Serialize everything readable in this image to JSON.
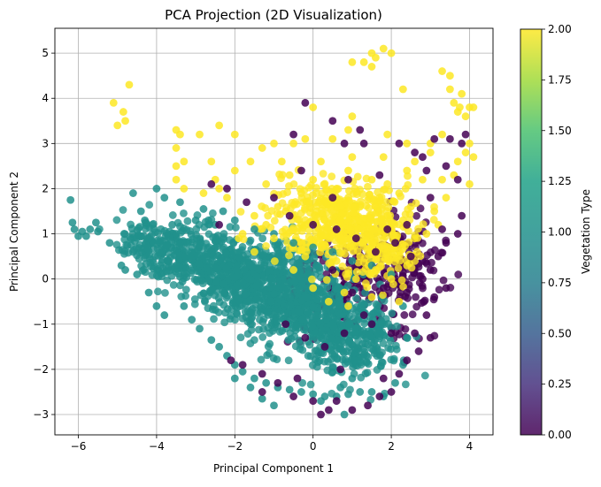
{
  "chart_data": {
    "type": "scatter",
    "title": "PCA Projection (2D Visualization)",
    "xlabel": "Principal Component 1",
    "ylabel": "Principal Component 2",
    "xlim": [
      -6.6,
      4.6
    ],
    "ylim": [
      -3.45,
      5.55
    ],
    "xticks": [
      -6,
      -4,
      -2,
      0,
      2,
      4
    ],
    "yticks": [
      -3,
      -2,
      -1,
      0,
      1,
      2,
      3,
      4,
      5
    ],
    "grid": true,
    "colormap": "viridis",
    "marker_alpha": 0.8,
    "colorbar": {
      "label": "Vegetation Type",
      "range": [
        0.0,
        2.0
      ],
      "ticks": [
        "0.00",
        "0.25",
        "0.50",
        "0.75",
        "1.00",
        "1.25",
        "1.50",
        "1.75",
        "2.00"
      ]
    },
    "series": [
      {
        "value": 1,
        "color": "#21918c",
        "points": [
          [
            -6.2,
            1.75
          ],
          [
            -6.15,
            1.25
          ],
          [
            -6.1,
            1.1
          ],
          [
            -6.0,
            0.95
          ],
          [
            -5.9,
            1.05
          ],
          [
            -5.8,
            0.95
          ],
          [
            -5.7,
            1.1
          ],
          [
            -5.55,
            1.25
          ],
          [
            -5.5,
            1.05
          ],
          [
            -5.2,
            0.8
          ],
          [
            -4.9,
            0.3
          ],
          [
            -4.8,
            0.2
          ],
          [
            -4.6,
            1.9
          ],
          [
            -4.6,
            0.6
          ],
          [
            -4.4,
            1.5
          ],
          [
            -4.3,
            1.3
          ],
          [
            -4.2,
            0.9
          ],
          [
            -4.0,
            2.0
          ],
          [
            -3.8,
            1.8
          ],
          [
            -3.6,
            1.2
          ],
          [
            -3.5,
            0.3
          ],
          [
            -3.3,
            -0.6
          ],
          [
            -3.1,
            -0.9
          ],
          [
            -2.9,
            -1.1
          ],
          [
            -2.6,
            -1.35
          ],
          [
            -2.4,
            -1.5
          ],
          [
            -2.2,
            -1.7
          ],
          [
            -2.0,
            -1.9
          ],
          [
            -1.8,
            -2.05
          ],
          [
            -1.5,
            -2.2
          ],
          [
            -1.2,
            -2.3
          ],
          [
            -0.9,
            -2.4
          ],
          [
            -0.6,
            -2.45
          ],
          [
            -0.3,
            -2.5
          ],
          [
            0.0,
            -2.55
          ],
          [
            0.3,
            -2.6
          ],
          [
            0.6,
            -2.6
          ],
          [
            0.9,
            -2.55
          ],
          [
            1.2,
            -2.5
          ],
          [
            1.5,
            -2.5
          ],
          [
            1.8,
            -2.6
          ],
          [
            2.1,
            -2.3
          ],
          [
            2.3,
            -1.9
          ],
          [
            2.4,
            -1.3
          ],
          [
            2.3,
            -0.6
          ],
          [
            -1.0,
            -2.8
          ],
          [
            -1.3,
            -2.65
          ],
          [
            0.2,
            -2.7
          ],
          [
            -2.5,
            1.2
          ],
          [
            -2.0,
            1.3
          ],
          [
            -1.5,
            1.1
          ],
          [
            -1.0,
            1.0
          ],
          [
            -0.5,
            0.8
          ],
          [
            0.0,
            0.7
          ],
          [
            0.5,
            0.6
          ],
          [
            1.0,
            0.4
          ],
          [
            1.5,
            0.3
          ],
          [
            2.0,
            0.1
          ],
          [
            -3.0,
            1.3
          ],
          [
            -3.5,
            1.0
          ],
          [
            -4.5,
            0.1
          ],
          [
            -4.2,
            -0.3
          ],
          [
            -4.0,
            -0.6
          ],
          [
            -3.8,
            -0.8
          ],
          [
            -3.4,
            1.7
          ],
          [
            -2.8,
            1.55
          ],
          [
            -2.3,
            1.5
          ],
          [
            -1.6,
            -2.4
          ],
          [
            -2.0,
            -2.2
          ],
          [
            0.7,
            -2.4
          ],
          [
            1.0,
            -2.2
          ],
          [
            0.8,
            -3.0
          ]
        ]
      },
      {
        "value": 2,
        "color": "#fde725",
        "points": [
          [
            -5.1,
            3.9
          ],
          [
            -5.0,
            3.4
          ],
          [
            -4.85,
            3.7
          ],
          [
            -4.8,
            3.5
          ],
          [
            -4.7,
            4.3
          ],
          [
            -3.5,
            3.3
          ],
          [
            -3.4,
            3.2
          ],
          [
            -3.5,
            2.9
          ],
          [
            -3.3,
            2.6
          ],
          [
            -3.5,
            2.5
          ],
          [
            -3.5,
            2.2
          ],
          [
            -3.3,
            2.0
          ],
          [
            -2.9,
            3.2
          ],
          [
            -2.4,
            3.4
          ],
          [
            -2.0,
            3.2
          ],
          [
            -1.3,
            2.9
          ],
          [
            -1.0,
            3.0
          ],
          [
            -0.5,
            3.0
          ],
          [
            -0.2,
            3.1
          ],
          [
            0.0,
            3.8
          ],
          [
            0.5,
            3.1
          ],
          [
            0.9,
            3.3
          ],
          [
            1.0,
            3.6
          ],
          [
            1.0,
            4.8
          ],
          [
            1.3,
            4.8
          ],
          [
            1.5,
            4.7
          ],
          [
            1.5,
            5.0
          ],
          [
            1.6,
            4.9
          ],
          [
            1.8,
            5.1
          ],
          [
            2.0,
            5.0
          ],
          [
            1.9,
            3.2
          ],
          [
            2.4,
            3.0
          ],
          [
            2.3,
            4.2
          ],
          [
            3.0,
            3.0
          ],
          [
            3.3,
            3.2
          ],
          [
            3.3,
            4.6
          ],
          [
            3.5,
            4.2
          ],
          [
            3.5,
            4.5
          ],
          [
            3.6,
            3.9
          ],
          [
            3.7,
            3.7
          ],
          [
            3.75,
            3.8
          ],
          [
            3.8,
            4.1
          ],
          [
            3.9,
            3.6
          ],
          [
            3.9,
            2.8
          ],
          [
            4.0,
            2.1
          ],
          [
            4.0,
            3.8
          ],
          [
            4.1,
            3.8
          ],
          [
            4.1,
            2.7
          ],
          [
            4.0,
            3.0
          ],
          [
            3.7,
            2.6
          ],
          [
            3.6,
            2.3
          ],
          [
            3.4,
            1.8
          ],
          [
            3.3,
            2.2
          ],
          [
            3.0,
            2.8
          ],
          [
            3.1,
            1.5
          ],
          [
            2.8,
            2.2
          ],
          [
            2.6,
            2.6
          ],
          [
            2.4,
            2.4
          ],
          [
            2.2,
            1.9
          ],
          [
            1.9,
            2.1
          ],
          [
            1.7,
            1.8
          ],
          [
            1.5,
            2.2
          ],
          [
            1.2,
            1.6
          ],
          [
            0.9,
            2.4
          ],
          [
            0.6,
            2.0
          ],
          [
            0.3,
            1.7
          ],
          [
            0.0,
            2.2
          ],
          [
            -0.3,
            1.9
          ],
          [
            -0.6,
            2.3
          ],
          [
            -0.9,
            1.6
          ],
          [
            -1.2,
            2.1
          ],
          [
            -1.5,
            1.4
          ],
          [
            -1.8,
            1.0
          ],
          [
            -2.0,
            2.4
          ],
          [
            -2.2,
            1.8
          ],
          [
            -2.5,
            2.2
          ],
          [
            -2.6,
            2.6
          ],
          [
            -1.6,
            2.6
          ],
          [
            -0.8,
            2.6
          ],
          [
            0.2,
            2.6
          ],
          [
            1.0,
            2.7
          ],
          [
            1.8,
            2.7
          ],
          [
            -1.9,
            0.9
          ],
          [
            -1.5,
            0.6
          ],
          [
            -1.0,
            0.9
          ],
          [
            -0.5,
            0.2
          ],
          [
            0.0,
            -0.2
          ],
          [
            0.4,
            -0.5
          ],
          [
            0.8,
            -0.3
          ],
          [
            1.2,
            0.5
          ],
          [
            1.6,
            0.2
          ],
          [
            2.0,
            0.0
          ],
          [
            2.2,
            -0.5
          ],
          [
            2.4,
            0.3
          ],
          [
            2.6,
            0.9
          ],
          [
            2.9,
            1.0
          ],
          [
            -0.3,
            1.2
          ],
          [
            0.2,
            1.0
          ],
          [
            0.7,
            1.3
          ],
          [
            1.4,
            1.2
          ],
          [
            1.9,
            1.4
          ],
          [
            2.3,
            1.3
          ],
          [
            -1.2,
            1.2
          ],
          [
            -0.7,
            1.5
          ],
          [
            0.1,
            1.5
          ],
          [
            0.9,
            1.8
          ],
          [
            1.6,
            1.6
          ],
          [
            2.5,
            1.6
          ],
          [
            3.2,
            1.2
          ],
          [
            -2.4,
            2.0
          ],
          [
            -2.8,
            1.9
          ],
          [
            0.6,
            0.4
          ],
          [
            1.1,
            0.0
          ],
          [
            1.5,
            -0.4
          ],
          [
            0.9,
            -0.6
          ],
          [
            -0.2,
            0.5
          ]
        ]
      },
      {
        "value": 0,
        "color": "#440154",
        "points": [
          [
            -0.2,
            3.9
          ],
          [
            -0.5,
            3.2
          ],
          [
            0.5,
            3.5
          ],
          [
            0.8,
            3.0
          ],
          [
            1.2,
            3.3
          ],
          [
            1.3,
            3.0
          ],
          [
            2.2,
            3.0
          ],
          [
            2.6,
            2.8
          ],
          [
            3.1,
            3.1
          ],
          [
            3.5,
            3.1
          ],
          [
            3.8,
            3.0
          ],
          [
            3.9,
            3.2
          ],
          [
            3.7,
            2.2
          ],
          [
            3.4,
            2.5
          ],
          [
            2.9,
            2.4
          ],
          [
            3.0,
            1.8
          ],
          [
            3.3,
            1.1
          ],
          [
            3.7,
            1.0
          ],
          [
            3.8,
            1.4
          ],
          [
            3.4,
            0.8
          ],
          [
            3.2,
            0.5
          ],
          [
            3.0,
            0.2
          ],
          [
            3.4,
            -0.2
          ],
          [
            3.1,
            -0.4
          ],
          [
            2.9,
            -0.8
          ],
          [
            3.0,
            -1.3
          ],
          [
            2.7,
            -1.6
          ],
          [
            2.6,
            -1.2
          ],
          [
            2.4,
            -1.8
          ],
          [
            2.2,
            -2.1
          ],
          [
            2.0,
            -2.5
          ],
          [
            1.7,
            -2.6
          ],
          [
            1.4,
            -2.8
          ],
          [
            1.0,
            -2.9
          ],
          [
            0.6,
            -2.7
          ],
          [
            0.4,
            -2.9
          ],
          [
            0.0,
            -2.7
          ],
          [
            -0.5,
            -2.6
          ],
          [
            -0.9,
            -2.3
          ],
          [
            -1.3,
            -2.1
          ],
          [
            -1.8,
            -1.9
          ],
          [
            -2.1,
            -1.8
          ],
          [
            -1.3,
            -2.5
          ],
          [
            0.2,
            -3.0
          ],
          [
            -2.4,
            1.2
          ],
          [
            -2.6,
            2.1
          ],
          [
            -2.2,
            2.0
          ],
          [
            -1.7,
            1.7
          ],
          [
            -1.0,
            1.8
          ],
          [
            -0.6,
            1.4
          ],
          [
            0.0,
            1.2
          ],
          [
            0.6,
            1.1
          ],
          [
            1.1,
            0.9
          ],
          [
            1.6,
            0.6
          ],
          [
            2.1,
            0.8
          ],
          [
            2.5,
            0.5
          ],
          [
            2.8,
            0.0
          ],
          [
            1.8,
            -0.2
          ],
          [
            1.3,
            -0.8
          ],
          [
            0.8,
            -1.2
          ],
          [
            0.3,
            -1.5
          ],
          [
            -0.2,
            -1.3
          ],
          [
            -0.7,
            -1.0
          ],
          [
            0.5,
            0.2
          ],
          [
            1.0,
            -0.3
          ],
          [
            1.5,
            -1.0
          ],
          [
            2.0,
            -1.2
          ],
          [
            2.4,
            -0.3
          ],
          [
            1.9,
            1.1
          ],
          [
            2.4,
            1.2
          ],
          [
            0.5,
            1.8
          ],
          [
            -0.3,
            2.4
          ],
          [
            0.9,
            2.2
          ],
          [
            1.7,
            2.3
          ],
          [
            2.8,
            2.7
          ],
          [
            0.7,
            -2.0
          ],
          [
            1.8,
            -2.2
          ],
          [
            -0.4,
            -2.2
          ]
        ]
      }
    ]
  }
}
